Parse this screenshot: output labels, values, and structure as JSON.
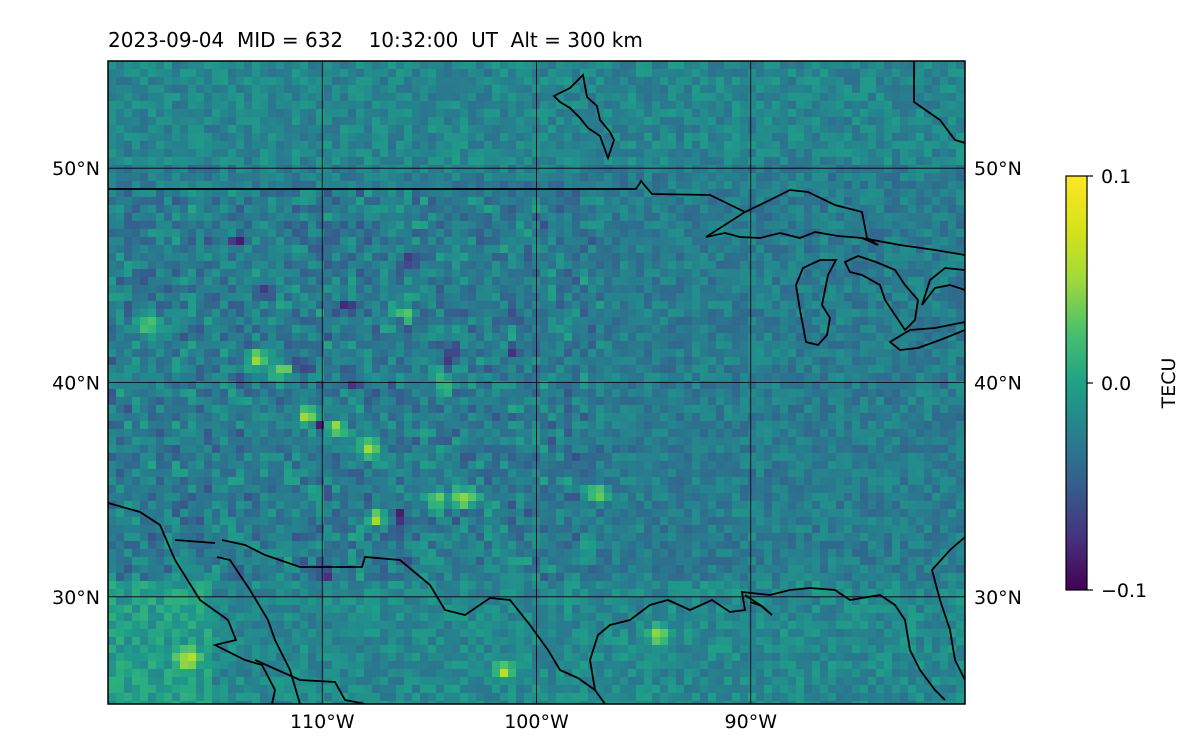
{
  "title": "2023-09-04  MID = 632    10:32:00  UT  Alt = 300 km",
  "map": {
    "lon_range": [
      -120,
      -80
    ],
    "lat_range": [
      25,
      55
    ],
    "lon_ticks": [
      {
        "value": -110,
        "label": "110°W"
      },
      {
        "value": -100,
        "label": "100°W"
      },
      {
        "value": -90,
        "label": "90°W"
      }
    ],
    "lat_ticks": [
      {
        "value": 50,
        "label": "50°N"
      },
      {
        "value": 40,
        "label": "40°N"
      },
      {
        "value": 30,
        "label": "30°N"
      }
    ],
    "field_description": "gridded differential TEC map (viridis colormap)",
    "background_color": "#2a8c8a",
    "hotspots_high": [
      [
        -110.7,
        38.6
      ],
      [
        -109.5,
        38.0
      ],
      [
        -112.0,
        40.6
      ],
      [
        -113.0,
        41.2
      ],
      [
        -118.2,
        42.8
      ],
      [
        -116.3,
        27.3
      ],
      [
        -101.6,
        26.8
      ],
      [
        -106.5,
        43.2
      ],
      [
        -104.8,
        34.6
      ],
      [
        -103.5,
        34.8
      ],
      [
        -97.4,
        35.0
      ],
      [
        -94.5,
        28.4
      ],
      [
        -107.5,
        33.8
      ],
      [
        -108.0,
        37.0
      ],
      [
        -104.5,
        40.0
      ]
    ],
    "hotspots_low": [
      [
        -114.0,
        46.7
      ],
      [
        -106.0,
        45.8
      ],
      [
        -104.8,
        39.9
      ],
      [
        -108.5,
        40.0
      ],
      [
        -104.1,
        41.4
      ],
      [
        -110.2,
        38.2
      ],
      [
        -111.0,
        40.9
      ],
      [
        -106.5,
        43.0
      ],
      [
        -101.2,
        41.5
      ],
      [
        -106.5,
        33.9
      ],
      [
        -110.0,
        31.2
      ],
      [
        -109.0,
        43.6
      ],
      [
        -112.8,
        44.3
      ]
    ]
  },
  "colorbar": {
    "label": "TECU",
    "min": -0.1,
    "max": 0.1,
    "tick_labels": [
      "0.1",
      "0.0",
      "−0.1"
    ],
    "tick_values": [
      0.1,
      0.0,
      -0.1
    ],
    "colormap": "viridis"
  }
}
